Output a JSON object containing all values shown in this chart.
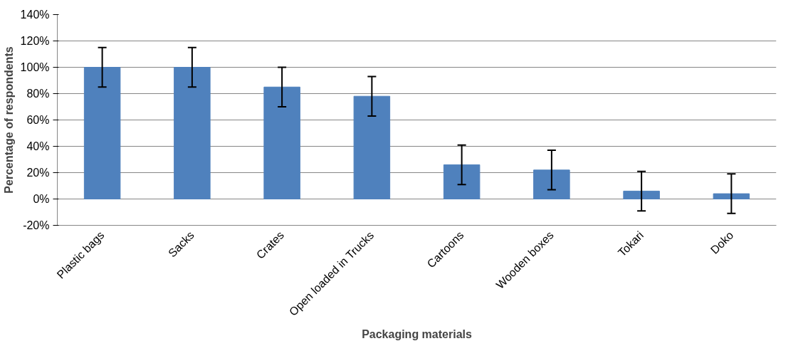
{
  "chart_data": {
    "type": "bar",
    "xlabel": "Packaging materials",
    "ylabel": "Percentage of respondents",
    "categories": [
      "Plastic bags",
      "Sacks",
      "Crates",
      "Open loaded in Trucks",
      "Cartoons",
      "Wooden boxes",
      "Tokari",
      "Doko"
    ],
    "values": [
      100,
      100,
      85,
      78,
      26,
      22,
      6,
      4
    ],
    "errors": [
      15,
      15,
      15,
      15,
      15,
      15,
      15,
      15
    ],
    "color": "#4f81bd",
    "ylim": [
      -20,
      140
    ],
    "yticks": [
      {
        "value": -20,
        "label": "-20%"
      },
      {
        "value": 0,
        "label": "0%"
      },
      {
        "value": 20,
        "label": "20%"
      },
      {
        "value": 40,
        "label": "40%"
      },
      {
        "value": 60,
        "label": "60%"
      },
      {
        "value": 80,
        "label": "80%"
      },
      {
        "value": 100,
        "label": "100%"
      },
      {
        "value": 120,
        "label": "120%"
      },
      {
        "value": 140,
        "label": "140%"
      }
    ],
    "grid": "y"
  }
}
